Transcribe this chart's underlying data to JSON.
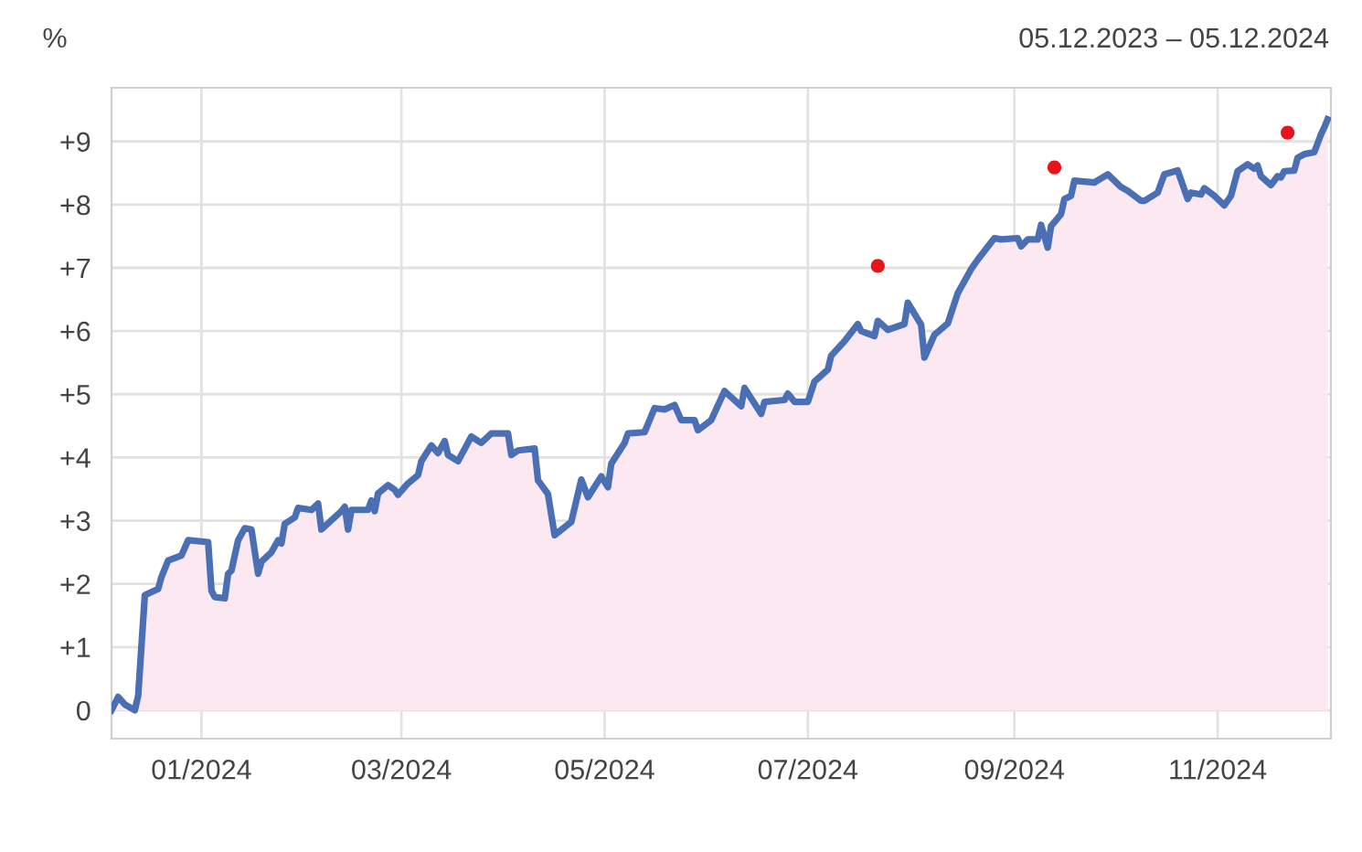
{
  "chart_data": {
    "type": "area",
    "ylabel": "%",
    "subtitle": "05.12.2023 – 05.12.2024",
    "xlim": [
      "2023-12-05",
      "2024-12-05"
    ],
    "ylim": [
      -0.45,
      9.85
    ],
    "xticks": [
      {
        "value": "2024-01-01",
        "label": "01/2024"
      },
      {
        "value": "2024-03-01",
        "label": "03/2024"
      },
      {
        "value": "2024-05-01",
        "label": "05/2024"
      },
      {
        "value": "2024-07-01",
        "label": "07/2024"
      },
      {
        "value": "2024-09-01",
        "label": "09/2024"
      },
      {
        "value": "2024-11-01",
        "label": "11/2024"
      }
    ],
    "yticks": [
      {
        "value": 0,
        "label": "0"
      },
      {
        "value": 1,
        "label": "+1"
      },
      {
        "value": 2,
        "label": "+2"
      },
      {
        "value": 3,
        "label": "+3"
      },
      {
        "value": 4,
        "label": "+4"
      },
      {
        "value": 5,
        "label": "+5"
      },
      {
        "value": 6,
        "label": "+6"
      },
      {
        "value": 7,
        "label": "+7"
      },
      {
        "value": 8,
        "label": "+8"
      },
      {
        "value": 9,
        "label": "+9"
      }
    ],
    "grid": true,
    "legend": false,
    "series": [
      {
        "color": "#4a6fb5",
        "x": [
          "2023-12-05",
          "2023-12-07",
          "2023-12-09",
          "2023-12-12",
          "2023-12-13",
          "2023-12-15",
          "2023-12-19",
          "2023-12-20",
          "2023-12-22",
          "2023-12-26",
          "2023-12-28",
          "2024-01-03",
          "2024-01-04",
          "2024-01-05",
          "2024-01-08",
          "2024-01-09",
          "2024-01-10",
          "2024-01-12",
          "2024-01-14",
          "2024-01-16",
          "2024-01-18",
          "2024-01-19",
          "2024-01-22",
          "2024-01-24",
          "2024-01-25",
          "2024-01-26",
          "2024-01-29",
          "2024-01-30",
          "2024-02-03",
          "2024-02-05",
          "2024-02-06",
          "2024-02-12",
          "2024-02-13",
          "2024-02-14",
          "2024-02-15",
          "2024-02-20",
          "2024-02-21",
          "2024-02-22",
          "2024-02-23",
          "2024-02-26",
          "2024-02-28",
          "2024-02-29",
          "2024-03-03",
          "2024-03-06",
          "2024-03-07",
          "2024-03-10",
          "2024-03-12",
          "2024-03-14",
          "2024-03-15",
          "2024-03-18",
          "2024-03-22",
          "2024-03-25",
          "2024-03-28",
          "2024-04-02",
          "2024-04-03",
          "2024-04-05",
          "2024-04-10",
          "2024-04-11",
          "2024-04-14",
          "2024-04-16",
          "2024-04-21",
          "2024-04-24",
          "2024-04-26",
          "2024-04-30",
          "2024-05-02",
          "2024-05-03",
          "2024-05-07",
          "2024-05-08",
          "2024-05-13",
          "2024-05-16",
          "2024-05-19",
          "2024-05-22",
          "2024-05-24",
          "2024-05-28",
          "2024-05-29",
          "2024-06-02",
          "2024-06-06",
          "2024-06-11",
          "2024-06-12",
          "2024-06-17",
          "2024-06-18",
          "2024-06-24",
          "2024-06-25",
          "2024-06-27",
          "2024-07-01",
          "2024-07-03",
          "2024-07-07",
          "2024-07-08",
          "2024-07-12",
          "2024-07-16",
          "2024-07-17",
          "2024-07-21",
          "2024-07-22",
          "2024-07-25",
          "2024-07-30",
          "2024-07-31",
          "2024-08-04",
          "2024-08-05",
          "2024-08-08",
          "2024-08-12",
          "2024-08-15",
          "2024-08-19",
          "2024-08-21",
          "2024-08-26",
          "2024-08-28",
          "2024-09-02",
          "2024-09-03",
          "2024-09-05",
          "2024-09-08",
          "2024-09-09",
          "2024-09-11",
          "2024-09-12",
          "2024-09-15",
          "2024-09-16",
          "2024-09-18",
          "2024-09-19",
          "2024-09-25",
          "2024-09-29",
          "2024-09-30",
          "2024-10-03",
          "2024-10-05",
          "2024-10-09",
          "2024-10-10",
          "2024-10-14",
          "2024-10-16",
          "2024-10-20",
          "2024-10-23",
          "2024-10-24",
          "2024-10-27",
          "2024-10-28",
          "2024-10-31",
          "2024-11-03",
          "2024-11-05",
          "2024-11-07",
          "2024-11-10",
          "2024-11-12",
          "2024-11-13",
          "2024-11-14",
          "2024-11-17",
          "2024-11-19",
          "2024-11-20",
          "2024-11-21",
          "2024-11-24",
          "2024-11-25",
          "2024-11-27",
          "2024-11-30",
          "2024-12-02",
          "2024-12-03",
          "2024-12-04"
        ],
        "values": [
          0.0,
          0.21,
          0.09,
          0.0,
          0.23,
          1.82,
          1.92,
          2.11,
          2.37,
          2.45,
          2.69,
          2.66,
          1.89,
          1.79,
          1.77,
          2.16,
          2.21,
          2.69,
          2.88,
          2.86,
          2.16,
          2.35,
          2.5,
          2.69,
          2.64,
          2.95,
          3.05,
          3.2,
          3.17,
          3.27,
          2.86,
          3.15,
          3.22,
          2.86,
          3.17,
          3.17,
          3.32,
          3.15,
          3.43,
          3.56,
          3.49,
          3.41,
          3.59,
          3.72,
          3.94,
          4.19,
          4.07,
          4.26,
          4.04,
          3.94,
          4.33,
          4.23,
          4.38,
          4.38,
          4.04,
          4.11,
          4.14,
          3.64,
          3.42,
          2.77,
          2.98,
          3.65,
          3.37,
          3.7,
          3.53,
          3.9,
          4.23,
          4.38,
          4.4,
          4.78,
          4.76,
          4.83,
          4.59,
          4.59,
          4.43,
          4.59,
          5.05,
          4.81,
          5.1,
          4.69,
          4.88,
          4.91,
          5.01,
          4.88,
          4.88,
          5.2,
          5.39,
          5.61,
          5.84,
          6.11,
          6.0,
          5.92,
          6.16,
          6.02,
          6.11,
          6.45,
          6.1,
          5.58,
          5.94,
          6.12,
          6.6,
          6.98,
          7.13,
          7.47,
          7.45,
          7.47,
          7.34,
          7.45,
          7.45,
          7.68,
          7.32,
          7.66,
          7.85,
          8.09,
          8.14,
          8.38,
          8.35,
          8.48,
          8.43,
          8.28,
          8.22,
          8.06,
          8.06,
          8.19,
          8.48,
          8.54,
          8.09,
          8.19,
          8.16,
          8.26,
          8.14,
          7.99,
          8.14,
          8.53,
          8.64,
          8.57,
          8.62,
          8.45,
          8.31,
          8.45,
          8.43,
          8.53,
          8.54,
          8.74,
          8.8,
          8.83,
          9.11,
          9.22,
          9.35
        ]
      },
      {
        "type": "scatter",
        "color": "#e8141c",
        "marker": "circle",
        "x": [
          "2024-07-22",
          "2024-09-13",
          "2024-11-22"
        ],
        "values": [
          7.03,
          8.59,
          9.14
        ]
      }
    ]
  }
}
